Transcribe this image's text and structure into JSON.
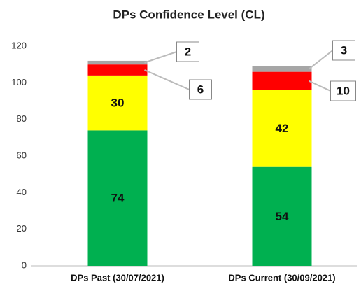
{
  "chart_data": {
    "type": "stacked_bar",
    "title": "DPs Confidence Level (CL)",
    "categories": [
      "DPs Past (30/07/2021)",
      "DPs Current (30/09/2021)"
    ],
    "series": [
      {
        "color": "#00b050",
        "values": [
          74,
          54
        ]
      },
      {
        "color": "#ffff00",
        "values": [
          30,
          42
        ]
      },
      {
        "color": "#ff0000",
        "values": [
          6,
          10
        ]
      },
      {
        "color": "#a6a6a6",
        "values": [
          2,
          3
        ]
      }
    ],
    "ylim": [
      0,
      120
    ],
    "yticks": [
      0,
      20,
      40,
      60,
      80,
      100,
      120
    ],
    "grid": false
  }
}
